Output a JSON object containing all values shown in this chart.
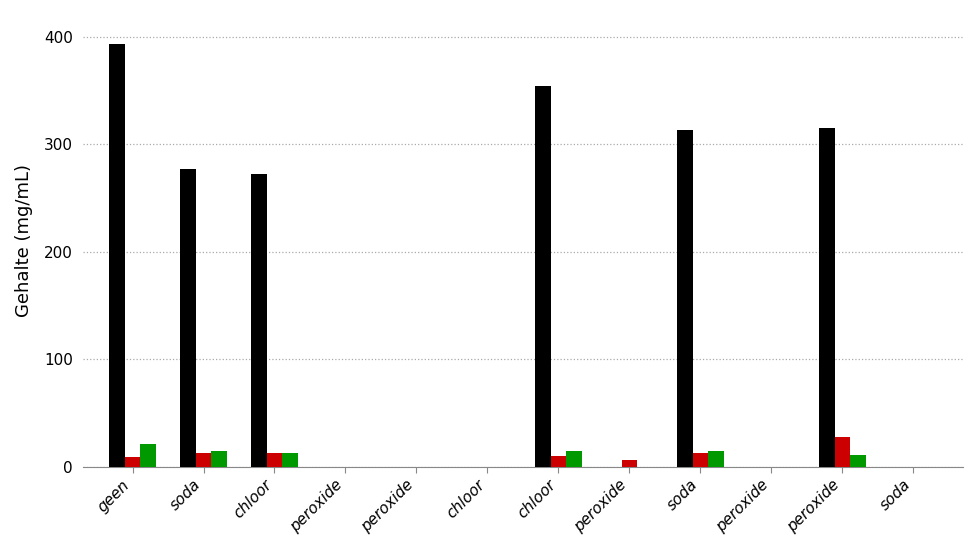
{
  "categories": [
    "geen",
    "soda",
    "chloor",
    "peroxide",
    "peroxide",
    "chloor",
    "chloor",
    "peroxide",
    "soda",
    "peroxide",
    "peroxide",
    "soda"
  ],
  "black_values": [
    393,
    277,
    272,
    0,
    0,
    0,
    354,
    0,
    313,
    0,
    315,
    0
  ],
  "red_values": [
    9,
    13,
    13,
    0,
    0,
    0,
    10,
    6,
    13,
    0,
    28,
    0
  ],
  "green_values": [
    21,
    15,
    13,
    0,
    0,
    0,
    15,
    0,
    15,
    0,
    11,
    0
  ],
  "ylabel": "Gehalte (mg/mL)",
  "ylim": [
    0,
    420
  ],
  "yticks": [
    0,
    100,
    200,
    300,
    400
  ],
  "black_color": "#000000",
  "red_color": "#cc0000",
  "green_color": "#009900",
  "bg_color": "#ffffff",
  "bar_width": 0.22
}
